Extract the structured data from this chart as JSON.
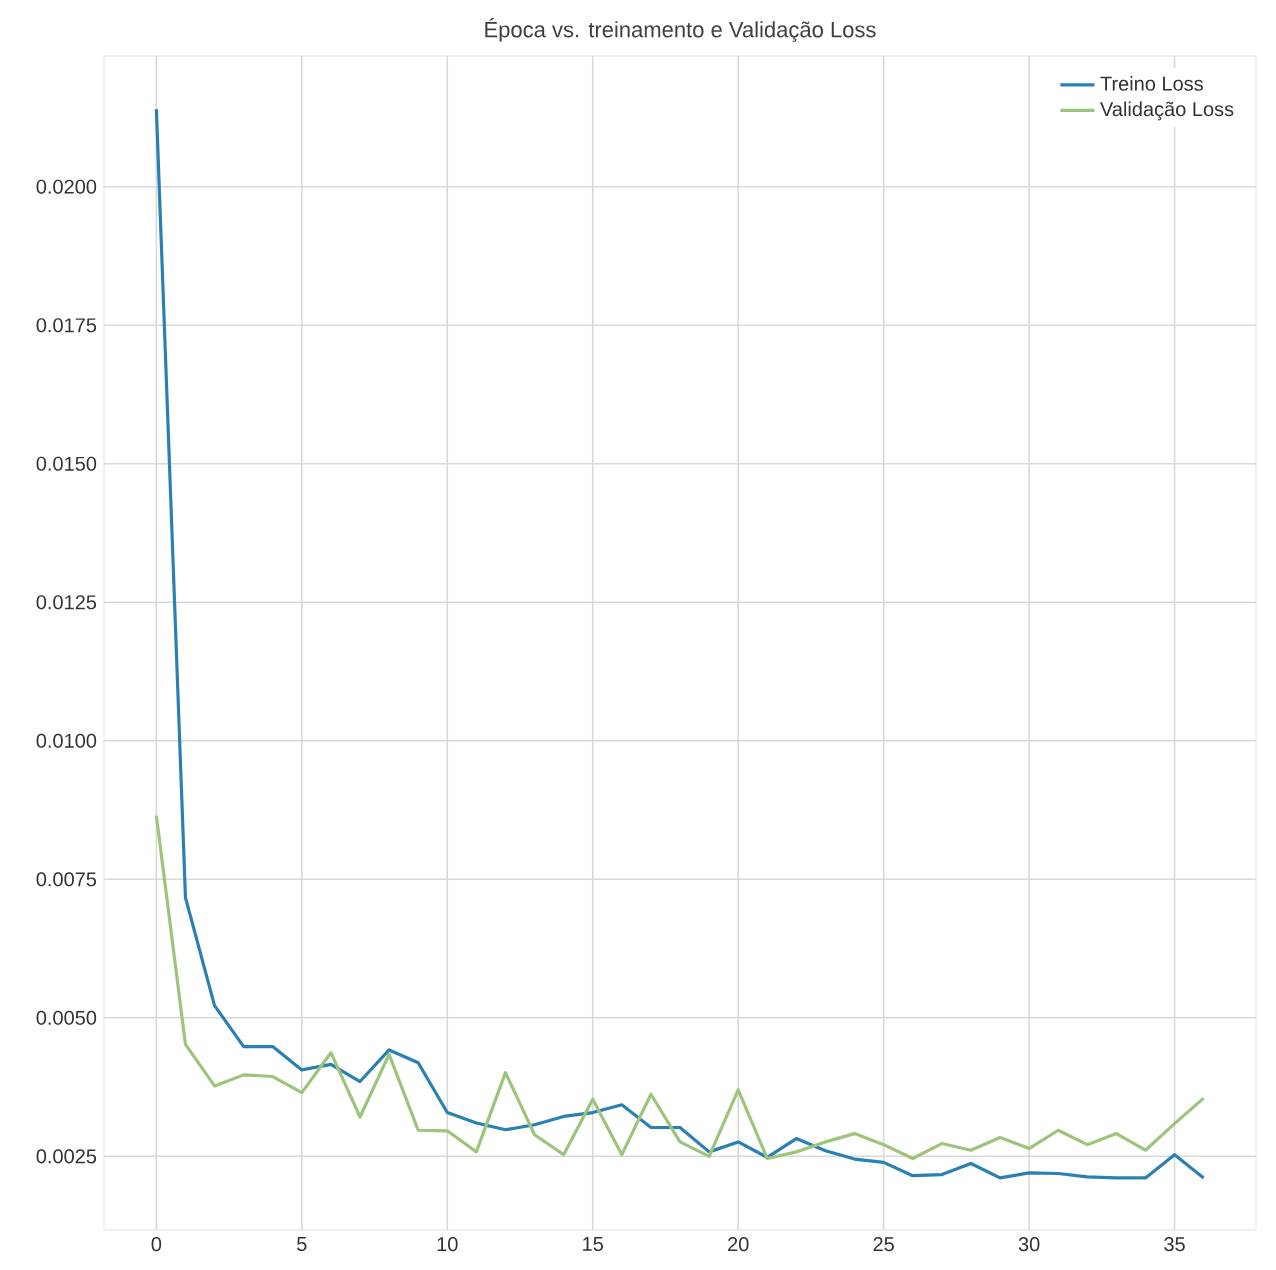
{
  "chart_data": {
    "type": "line",
    "title": "Época vs. treinamento e Validação Loss",
    "x": [
      0,
      1,
      2,
      3,
      4,
      5,
      6,
      7,
      8,
      9,
      10,
      11,
      12,
      13,
      14,
      15,
      16,
      17,
      18,
      19,
      20,
      21,
      22,
      23,
      24,
      25,
      26,
      27,
      28,
      29,
      30,
      31,
      32,
      33,
      34,
      35,
      36
    ],
    "series": [
      {
        "name": "Treino Loss",
        "color": "#2a7fb3",
        "values": [
          0.0214,
          0.00717,
          0.00522,
          0.00448,
          0.00448,
          0.00406,
          0.00416,
          0.00385,
          0.00442,
          0.00419,
          0.00329,
          0.0031,
          0.00298,
          0.00307,
          0.00322,
          0.00329,
          0.00343,
          0.00302,
          0.00302,
          0.00258,
          0.00276,
          0.00248,
          0.00282,
          0.0026,
          0.00245,
          0.00239,
          0.00215,
          0.00217,
          0.00237,
          0.00211,
          0.0022,
          0.00219,
          0.00213,
          0.00211,
          0.00211,
          0.00253,
          0.00211
        ]
      },
      {
        "name": "Validação Loss",
        "color": "#9cc57b",
        "values": [
          0.00865,
          0.00452,
          0.00377,
          0.00397,
          0.00394,
          0.00365,
          0.00437,
          0.00321,
          0.00434,
          0.00297,
          0.00296,
          0.00258,
          0.00401,
          0.00289,
          0.00253,
          0.00353,
          0.00253,
          0.00362,
          0.00276,
          0.0025,
          0.0037,
          0.00246,
          0.00258,
          0.00276,
          0.00291,
          0.00271,
          0.00246,
          0.00273,
          0.00261,
          0.00284,
          0.00264,
          0.00297,
          0.00271,
          0.00291,
          0.00261,
          0.00309,
          0.00355
        ]
      }
    ],
    "xlim": [
      -1.8,
      37.8
    ],
    "ylim": [
      0.00117,
      0.02236
    ],
    "xticks": [
      0,
      5,
      10,
      15,
      20,
      25,
      30,
      35
    ],
    "yticks": [
      {
        "value": 0.0025,
        "label": "0.0025"
      },
      {
        "value": 0.005,
        "label": "0.0050"
      },
      {
        "value": 0.0075,
        "label": "0.0075"
      },
      {
        "value": 0.01,
        "label": "0.0100"
      },
      {
        "value": 0.0125,
        "label": "0.0125"
      },
      {
        "value": 0.015,
        "label": "0.0150"
      },
      {
        "value": 0.0175,
        "label": "0.0175"
      },
      {
        "value": 0.02,
        "label": "0.0200"
      }
    ],
    "grid": true,
    "legend": "top right"
  }
}
